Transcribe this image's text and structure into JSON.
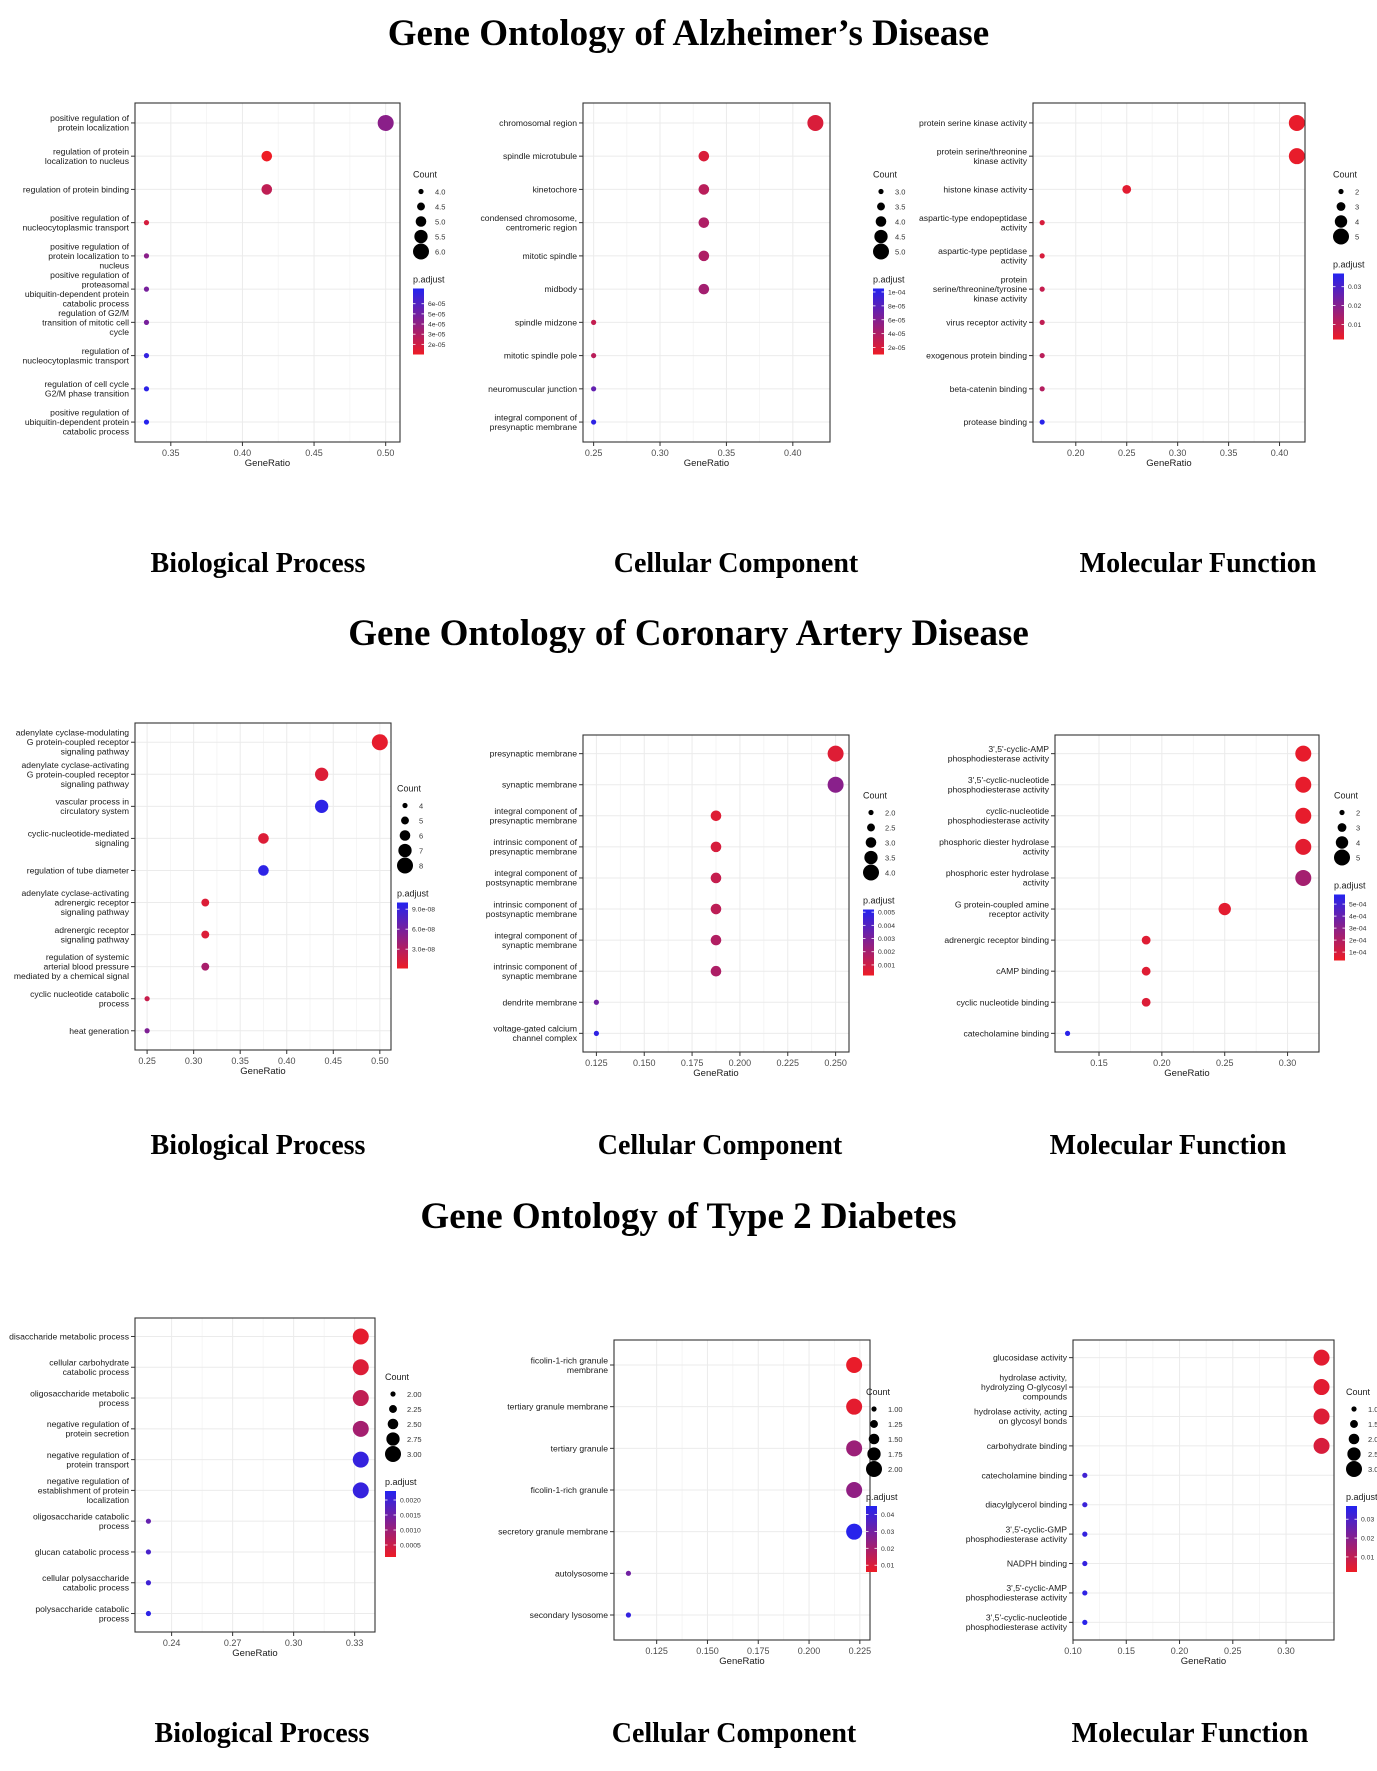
{
  "sections": [
    {
      "title": "Gene Ontology of Alzheimer’s Disease",
      "panel_labels": [
        "Biological Process",
        "Cellular Component",
        "Molecular Function"
      ]
    },
    {
      "title": "Gene Ontology of Coronary Artery Disease",
      "panel_labels": [
        "Biological Process",
        "Cellular Component",
        "Molecular Function"
      ]
    },
    {
      "title": "Gene Ontology of Type 2 Diabetes",
      "panel_labels": [
        "Biological Process",
        "Cellular Component",
        "Molecular Function"
      ]
    }
  ],
  "colors": {
    "low_padj": "#ee1c25",
    "high_padj": "#2323f0",
    "grid": "#ebebeb",
    "frame": "#333333"
  },
  "chart_data": [
    {
      "type": "scatter",
      "title": "Biological Process",
      "xlabel": "GeneRatio",
      "xlim": [
        0.325,
        0.51
      ],
      "xticks": [
        "0.35",
        "0.40",
        "0.45",
        "0.50"
      ],
      "xtick_values": [
        0.35,
        0.4,
        0.45,
        0.5
      ],
      "categories": [
        "positive regulation of\nprotein localization",
        "regulation of protein\nlocalization to nucleus",
        "regulation of protein binding",
        "positive regulation of\nnucleocytoplasmic transport",
        "positive regulation of\nprotein localization to\nnucleus",
        "positive regulation of\nproteasomal\nubiquitin-dependent protein\ncatabolic process",
        "regulation of G2/M\ntransition of mitotic cell\ncycle",
        "regulation of\nnucleocytoplasmic transport",
        "regulation of cell cycle\nG2/M phase transition",
        "positive regulation of\nubiquitin-dependent protein\ncatabolic process"
      ],
      "x": [
        0.5,
        0.417,
        0.417,
        0.333,
        0.333,
        0.333,
        0.333,
        0.333,
        0.333,
        0.333
      ],
      "count": [
        6,
        5,
        5,
        4,
        4,
        4,
        4,
        4,
        4,
        4
      ],
      "p_adjust": [
        4.2e-05,
        1e-05,
        2.5e-05,
        1.8e-05,
        4.2e-05,
        4.8e-05,
        4.8e-05,
        7e-05,
        7.2e-05,
        7.4e-05
      ],
      "size_legend": {
        "title": "Count",
        "values": [
          4.0,
          4.5,
          5.0,
          5.5,
          6.0
        ],
        "labels": [
          "4.0",
          "4.5",
          "5.0",
          "5.5",
          "6.0"
        ]
      },
      "color_legend": {
        "title": "p.adjust",
        "min": 1e-05,
        "max": 7.5e-05,
        "ticks": [
          6e-05,
          5e-05,
          4e-05,
          3e-05,
          2e-05
        ],
        "labels": [
          "6e-05",
          "5e-05",
          "4e-05",
          "3e-05",
          "2e-05"
        ]
      }
    },
    {
      "type": "scatter",
      "title": "Cellular Component",
      "xlabel": "GeneRatio",
      "xlim": [
        0.242,
        0.428
      ],
      "xticks": [
        "0.25",
        "0.30",
        "0.35",
        "0.40"
      ],
      "xtick_values": [
        0.25,
        0.3,
        0.35,
        0.4
      ],
      "categories": [
        "chromosomal region",
        "spindle microtubule",
        "kinetochore",
        "condensed chromosome,\ncentromeric region",
        "mitotic spindle",
        "midbody",
        "spindle midzone",
        "mitotic spindle pole",
        "neuromuscular junction",
        "integral component of\npresynaptic membrane"
      ],
      "x": [
        0.417,
        0.333,
        0.333,
        0.333,
        0.333,
        0.333,
        0.25,
        0.25,
        0.25,
        0.25
      ],
      "count": [
        5,
        4,
        4,
        4,
        4,
        4,
        3,
        3,
        3,
        3
      ],
      "p_adjust": [
        2e-05,
        2e-05,
        3.5e-05,
        4e-05,
        4e-05,
        4.5e-05,
        3e-05,
        3.5e-05,
        7.5e-05,
        0.0001
      ],
      "size_legend": {
        "title": "Count",
        "values": [
          3.0,
          3.5,
          4.0,
          4.5,
          5.0
        ],
        "labels": [
          "3.0",
          "3.5",
          "4.0",
          "4.5",
          "5.0"
        ]
      },
      "color_legend": {
        "title": "p.adjust",
        "min": 1e-05,
        "max": 0.000105,
        "ticks": [
          0.0001,
          8e-05,
          6e-05,
          4e-05,
          2e-05
        ],
        "labels": [
          "1e-04",
          "8e-05",
          "6e-05",
          "4e-05",
          "2e-05"
        ]
      }
    },
    {
      "type": "scatter",
      "title": "Molecular Function",
      "xlabel": "GeneRatio",
      "xlim": [
        0.158,
        0.425
      ],
      "xticks": [
        "0.20",
        "0.25",
        "0.30",
        "0.35",
        "0.40"
      ],
      "xtick_values": [
        0.2,
        0.25,
        0.3,
        0.35,
        0.4
      ],
      "categories": [
        "protein serine kinase activity",
        "protein serine/threonine\nkinase activity",
        "histone kinase activity",
        "aspartic-type endopeptidase\nactivity",
        "aspartic-type peptidase\nactivity",
        "protein\nserine/threonine/tyrosine\nkinase activity",
        "virus receptor activity",
        "exogenous protein binding",
        "beta-catenin binding",
        "protease binding"
      ],
      "x": [
        0.417,
        0.417,
        0.25,
        0.167,
        0.167,
        0.167,
        0.167,
        0.167,
        0.167,
        0.167
      ],
      "count": [
        5,
        5,
        3,
        2,
        2,
        2,
        2,
        2,
        2,
        2
      ],
      "p_adjust": [
        0.003,
        0.003,
        0.004,
        0.006,
        0.006,
        0.009,
        0.01,
        0.011,
        0.012,
        0.036
      ],
      "size_legend": {
        "title": "Count",
        "values": [
          2,
          3,
          4,
          5
        ],
        "labels": [
          "2",
          "3",
          "4",
          "5"
        ]
      },
      "color_legend": {
        "title": "p.adjust",
        "min": 0.002,
        "max": 0.037,
        "ticks": [
          0.03,
          0.02,
          0.01
        ],
        "labels": [
          "0.03",
          "0.02",
          "0.01"
        ]
      }
    },
    {
      "type": "scatter",
      "title": "Biological Process",
      "xlabel": "GeneRatio",
      "xlim": [
        0.237,
        0.512
      ],
      "xticks": [
        "0.25",
        "0.30",
        "0.35",
        "0.40",
        "0.45",
        "0.50"
      ],
      "xtick_values": [
        0.25,
        0.3,
        0.35,
        0.4,
        0.45,
        0.5
      ],
      "categories": [
        "adenylate cyclase-modulating\nG protein-coupled receptor\nsignaling pathway",
        "adenylate cyclase-activating\nG protein-coupled receptor\nsignaling pathway",
        "vascular process in\ncirculatory system",
        "cyclic-nucleotide-mediated\nsignaling",
        "regulation of tube diameter",
        "adenylate cyclase-activating\nadrenergic receptor\nsignaling pathway",
        "adrenergic receptor\nsignaling pathway",
        "regulation of systemic\narterial blood pressure\nmediated by a chemical signal",
        "cyclic nucleotide catabolic\nprocess",
        "heat generation"
      ],
      "x": [
        0.5,
        0.4375,
        0.4375,
        0.375,
        0.375,
        0.3125,
        0.3125,
        0.3125,
        0.25,
        0.25
      ],
      "count": [
        8,
        7,
        7,
        6,
        6,
        5,
        5,
        5,
        4,
        4
      ],
      "p_adjust": [
        5e-09,
        1e-08,
        9.5e-08,
        1e-08,
        9.5e-08,
        1e-08,
        1e-08,
        3.5e-08,
        2e-08,
        5.5e-08
      ],
      "size_legend": {
        "title": "Count",
        "values": [
          4,
          5,
          6,
          7,
          8
        ],
        "labels": [
          "4",
          "5",
          "6",
          "7",
          "8"
        ]
      },
      "color_legend": {
        "title": "p.adjust",
        "min": 1e-09,
        "max": 1e-07,
        "ticks": [
          9e-08,
          6e-08,
          3e-08
        ],
        "labels": [
          "9.0e-08",
          "6.0e-08",
          "3.0e-08"
        ]
      }
    },
    {
      "type": "scatter",
      "title": "Cellular Component",
      "xlabel": "GeneRatio",
      "xlim": [
        0.118,
        0.257
      ],
      "xticks": [
        "0.125",
        "0.150",
        "0.175",
        "0.200",
        "0.225",
        "0.250"
      ],
      "xtick_values": [
        0.125,
        0.15,
        0.175,
        0.2,
        0.225,
        0.25
      ],
      "categories": [
        "presynaptic membrane",
        "synaptic membrane",
        "integral component of\npresynaptic membrane",
        "intrinsic component of\npresynaptic membrane",
        "integral component of\npostsynaptic membrane",
        "intrinsic component of\npostsynaptic membrane",
        "integral component of\nsynaptic membrane",
        "intrinsic component of\nsynaptic membrane",
        "dendrite membrane",
        "voltage-gated calcium\nchannel complex"
      ],
      "x": [
        0.25,
        0.25,
        0.1875,
        0.1875,
        0.1875,
        0.1875,
        0.1875,
        0.1875,
        0.125,
        0.125
      ],
      "count": [
        4,
        4,
        3,
        3,
        3,
        3,
        3,
        3,
        2,
        2
      ],
      "p_adjust": [
        0.0006,
        0.0027,
        0.0006,
        0.0008,
        0.0012,
        0.0014,
        0.0017,
        0.0018,
        0.0033,
        0.0049
      ],
      "size_legend": {
        "title": "Count",
        "values": [
          2.0,
          2.5,
          3.0,
          3.5,
          4.0
        ],
        "labels": [
          "2.0",
          "2.5",
          "3.0",
          "3.5",
          "4.0"
        ]
      },
      "color_legend": {
        "title": "p.adjust",
        "min": 0.0002,
        "max": 0.0052,
        "ticks": [
          0.005,
          0.004,
          0.003,
          0.002,
          0.001
        ],
        "labels": [
          "0.005",
          "0.004",
          "0.003",
          "0.002",
          "0.001"
        ]
      }
    },
    {
      "type": "scatter",
      "title": "Molecular Function",
      "xlabel": "GeneRatio",
      "xlim": [
        0.115,
        0.325
      ],
      "xticks": [
        "0.15",
        "0.20",
        "0.25",
        "0.30"
      ],
      "xtick_values": [
        0.15,
        0.2,
        0.25,
        0.3
      ],
      "categories": [
        "3',5'-cyclic-AMP\nphosphodiesterase activity",
        "3',5'-cyclic-nucleotide\nphosphodiesterase activity",
        "cyclic-nucleotide\nphosphodiesterase activity",
        "phosphoric diester hydrolase\nactivity",
        "phosphoric ester hydrolase\nactivity",
        "G protein-coupled amine\nreceptor activity",
        "adrenergic receptor binding",
        "cAMP binding",
        "cyclic nucleotide binding",
        "catecholamine binding"
      ],
      "x": [
        0.3125,
        0.3125,
        0.3125,
        0.3125,
        0.3125,
        0.25,
        0.1875,
        0.1875,
        0.1875,
        0.125
      ],
      "count": [
        5,
        5,
        5,
        5,
        5,
        4,
        3,
        3,
        3,
        2
      ],
      "p_adjust": [
        5e-05,
        5e-05,
        5e-05,
        6e-05,
        0.00023,
        6e-05,
        7e-05,
        7e-05,
        8e-05,
        0.00056
      ],
      "size_legend": {
        "title": "Count",
        "values": [
          2,
          3,
          4,
          5
        ],
        "labels": [
          "2",
          "3",
          "4",
          "5"
        ]
      },
      "color_legend": {
        "title": "p.adjust",
        "min": 3e-05,
        "max": 0.00058,
        "ticks": [
          0.0005,
          0.0004,
          0.0003,
          0.0002,
          0.0001
        ],
        "labels": [
          "5e-04",
          "4e-04",
          "3e-04",
          "2e-04",
          "1e-04"
        ]
      }
    },
    {
      "type": "scatter",
      "title": "Biological Process",
      "xlabel": "GeneRatio",
      "xlim": [
        0.222,
        0.34
      ],
      "xticks": [
        "0.24",
        "0.27",
        "0.30",
        "0.33"
      ],
      "xtick_values": [
        0.24,
        0.27,
        0.3,
        0.33
      ],
      "categories": [
        "disaccharide metabolic process",
        "cellular carbohydrate\ncatabolic process",
        "oligosaccharide metabolic\nprocess",
        "negative regulation of\nprotein secretion",
        "negative regulation of\nprotein transport",
        "negative regulation of\nestablishment of protein\nlocalization",
        "oligosaccharide catabolic\nprocess",
        "glucan catabolic process",
        "cellular polysaccharide\ncatabolic process",
        "polysaccharide catabolic\nprocess"
      ],
      "x": [
        0.333,
        0.333,
        0.333,
        0.333,
        0.333,
        0.333,
        0.2286,
        0.2286,
        0.2286,
        0.2286
      ],
      "count": [
        3,
        3,
        3,
        3,
        3,
        3,
        2,
        2,
        2,
        2
      ],
      "p_adjust": [
        0.0002,
        0.0003,
        0.0006,
        0.0009,
        0.0021,
        0.0021,
        0.0016,
        0.0019,
        0.002,
        0.0022
      ],
      "size_legend": {
        "title": "Count",
        "values": [
          2.0,
          2.25,
          2.5,
          2.75,
          3.0
        ],
        "labels": [
          "2.00",
          "2.25",
          "2.50",
          "2.75",
          "3.00"
        ]
      },
      "color_legend": {
        "title": "p.adjust",
        "min": 0.0001,
        "max": 0.0023,
        "ticks": [
          0.002,
          0.0015,
          0.001,
          0.0005
        ],
        "labels": [
          "0.0020",
          "0.0015",
          "0.0010",
          "0.0005"
        ]
      }
    },
    {
      "type": "scatter",
      "title": "Cellular Component",
      "xlabel": "GeneRatio",
      "xlim": [
        0.104,
        0.23
      ],
      "xticks": [
        "0.125",
        "0.150",
        "0.175",
        "0.200",
        "0.225"
      ],
      "xtick_values": [
        0.125,
        0.15,
        0.175,
        0.2,
        0.225
      ],
      "categories": [
        "ficolin-1-rich granule\nmembrane",
        "tertiary granule membrane",
        "tertiary granule",
        "ficolin-1-rich granule",
        "secretory granule membrane",
        "autolysosome",
        "secondary lysosome"
      ],
      "x": [
        0.2222,
        0.2222,
        0.2222,
        0.2222,
        0.2222,
        0.1111,
        0.1111
      ],
      "count": [
        2,
        2,
        2,
        2,
        2,
        1,
        1
      ],
      "p_adjust": [
        0.007,
        0.008,
        0.022,
        0.024,
        0.044,
        0.03,
        0.042
      ],
      "size_legend": {
        "title": "Count",
        "values": [
          1.0,
          1.25,
          1.5,
          1.75,
          2.0
        ],
        "labels": [
          "1.00",
          "1.25",
          "1.50",
          "1.75",
          "2.00"
        ]
      },
      "color_legend": {
        "title": "p.adjust",
        "min": 0.006,
        "max": 0.045,
        "ticks": [
          0.04,
          0.03,
          0.02,
          0.01
        ],
        "labels": [
          "0.04",
          "0.03",
          "0.02",
          "0.01"
        ]
      }
    },
    {
      "type": "scatter",
      "title": "Molecular Function",
      "xlabel": "GeneRatio",
      "xlim": [
        0.1,
        0.345
      ],
      "xticks": [
        "0.10",
        "0.15",
        "0.20",
        "0.25",
        "0.30"
      ],
      "xtick_values": [
        0.1,
        0.15,
        0.2,
        0.25,
        0.3
      ],
      "categories": [
        "glucosidase activity",
        "hydrolase activity,\nhydrolyzing O-glycosyl\ncompounds",
        "hydrolase activity, acting\non glycosyl bonds",
        "carbohydrate binding",
        "catecholamine binding",
        "diacylglycerol binding",
        "3',5'-cyclic-GMP\nphosphodiesterase activity",
        "NADPH binding",
        "3',5'-cyclic-AMP\nphosphodiesterase activity",
        "3',5'-cyclic-nucleotide\nphosphodiesterase activity"
      ],
      "x": [
        0.3333,
        0.3333,
        0.3333,
        0.3333,
        0.1111,
        0.1111,
        0.1111,
        0.1111,
        0.1111,
        0.1111
      ],
      "count": [
        3,
        3,
        3,
        3,
        1,
        1,
        1,
        1,
        1,
        1
      ],
      "p_adjust": [
        0.004,
        0.004,
        0.005,
        0.006,
        0.032,
        0.033,
        0.034,
        0.034,
        0.035,
        0.036
      ],
      "size_legend": {
        "title": "Count",
        "values": [
          1.0,
          1.5,
          2.0,
          2.5,
          3.0
        ],
        "labels": [
          "1.0",
          "1.5",
          "2.0",
          "2.5",
          "3.0"
        ]
      },
      "color_legend": {
        "title": "p.adjust",
        "min": 0.002,
        "max": 0.037,
        "ticks": [
          0.03,
          0.02,
          0.01
        ],
        "labels": [
          "0.03",
          "0.02",
          "0.01"
        ]
      }
    }
  ]
}
